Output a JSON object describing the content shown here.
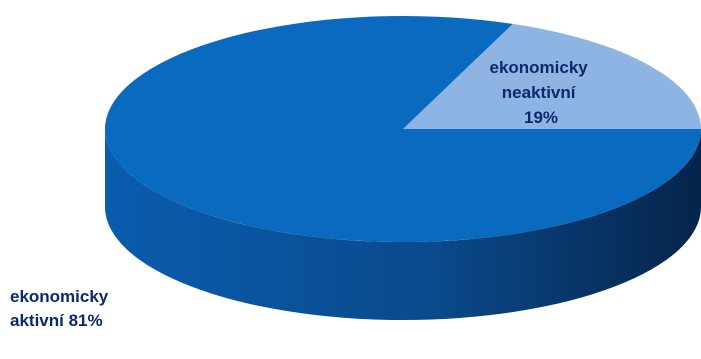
{
  "chart_data": {
    "type": "pie",
    "style": "3d",
    "slices": [
      {
        "name": "ekonomicky aktivní",
        "value": 81,
        "label_lines": [
          "ekonomicky",
          "aktivní 81%"
        ],
        "color": "#0a6abf"
      },
      {
        "name": "ekonomicky neaktivní",
        "value": 19,
        "label_lines": [
          "ekonomicky",
          "neaktivní",
          "19%"
        ],
        "color": "#8eb4e3"
      }
    ]
  }
}
